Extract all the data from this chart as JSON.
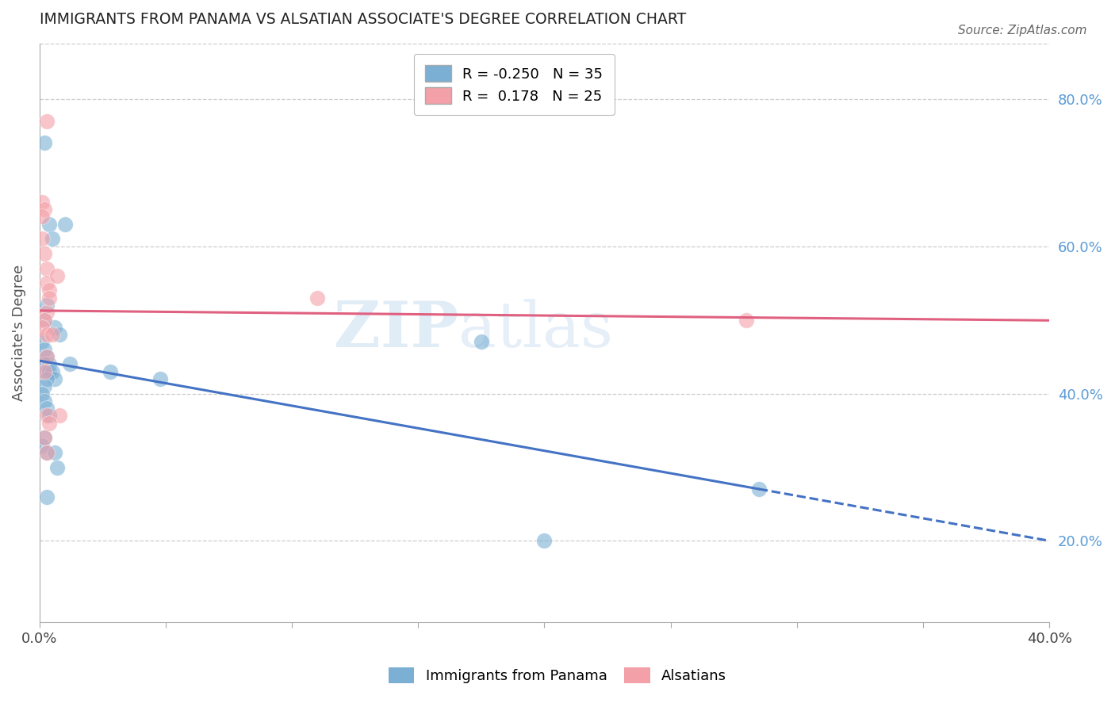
{
  "title": "IMMIGRANTS FROM PANAMA VS ALSATIAN ASSOCIATE'S DEGREE CORRELATION CHART",
  "source_text": "Source: ZipAtlas.com",
  "ylabel": "Associate's Degree",
  "xlim": [
    0.0,
    0.4
  ],
  "ylim": [
    0.09,
    0.875
  ],
  "xticks": [
    0.0,
    0.05,
    0.1,
    0.15,
    0.2,
    0.25,
    0.3,
    0.35,
    0.4
  ],
  "ytick_labels_right": [
    "20.0%",
    "40.0%",
    "60.0%",
    "80.0%"
  ],
  "ytick_vals_right": [
    0.2,
    0.4,
    0.6,
    0.8
  ],
  "legend_r1": "R = -0.250",
  "legend_n1": "N = 35",
  "legend_r2": "R =  0.178",
  "legend_n2": "N = 25",
  "blue_color": "#7BAFD4",
  "pink_color": "#F4A0A8",
  "blue_line_color": "#4472C4",
  "pink_line_color": "#E06080",
  "watermark_zip": "ZIP",
  "watermark_atlas": "atlas",
  "blue_x": [
    0.002,
    0.01,
    0.004,
    0.005,
    0.003,
    0.002,
    0.006,
    0.008,
    0.001,
    0.002,
    0.003,
    0.004,
    0.002,
    0.003,
    0.004,
    0.005,
    0.006,
    0.003,
    0.002,
    0.001,
    0.002,
    0.003,
    0.004,
    0.002,
    0.001,
    0.003,
    0.012,
    0.028,
    0.048,
    0.2,
    0.285,
    0.006,
    0.007,
    0.175,
    0.003
  ],
  "blue_y": [
    0.74,
    0.63,
    0.63,
    0.61,
    0.52,
    0.5,
    0.49,
    0.48,
    0.47,
    0.46,
    0.45,
    0.44,
    0.44,
    0.43,
    0.43,
    0.43,
    0.42,
    0.42,
    0.41,
    0.4,
    0.39,
    0.38,
    0.37,
    0.34,
    0.33,
    0.32,
    0.44,
    0.43,
    0.42,
    0.2,
    0.27,
    0.32,
    0.3,
    0.47,
    0.26
  ],
  "pink_x": [
    0.001,
    0.002,
    0.001,
    0.001,
    0.002,
    0.003,
    0.003,
    0.004,
    0.003,
    0.002,
    0.001,
    0.003,
    0.005,
    0.003,
    0.002,
    0.003,
    0.007,
    0.008,
    0.11,
    0.004,
    0.002,
    0.003,
    0.003,
    0.004,
    0.28
  ],
  "pink_y": [
    0.66,
    0.65,
    0.64,
    0.61,
    0.59,
    0.57,
    0.55,
    0.54,
    0.51,
    0.5,
    0.49,
    0.48,
    0.48,
    0.45,
    0.43,
    0.37,
    0.56,
    0.37,
    0.53,
    0.36,
    0.34,
    0.32,
    0.77,
    0.53,
    0.5
  ],
  "blue_line_x0": 0.0,
  "blue_line_x_solid_end": 0.285,
  "blue_line_x_dash_end": 0.4,
  "pink_line_x0": 0.0,
  "pink_line_x_end": 0.4
}
